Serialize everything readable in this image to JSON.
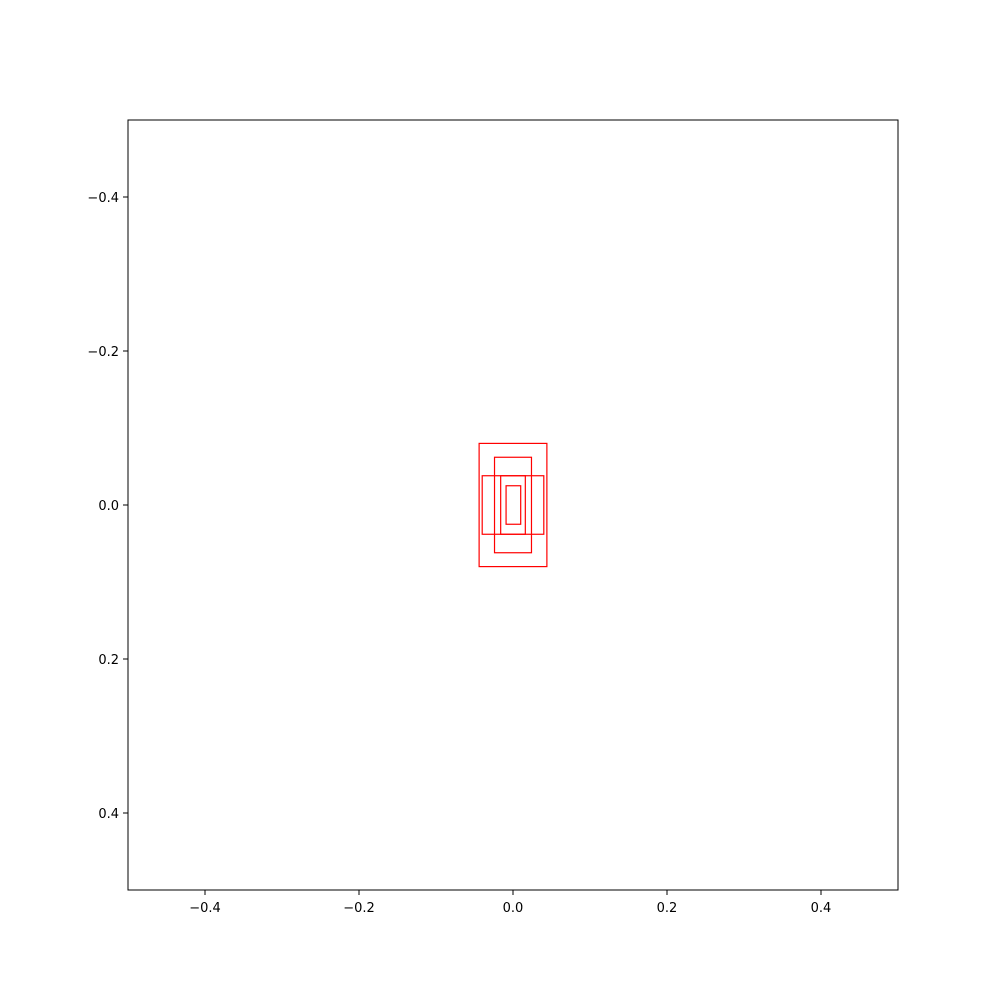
{
  "chart_data": {
    "type": "scatter",
    "title": "",
    "xlabel": "",
    "ylabel": "",
    "xlim": [
      -0.5,
      0.5
    ],
    "ylim": [
      0.5,
      -0.5
    ],
    "y_inverted": true,
    "grid": false,
    "legend": "none",
    "x_ticks": [
      -0.4,
      -0.2,
      0.0,
      0.2,
      0.4
    ],
    "x_tick_labels": [
      "−0.4",
      "−0.2",
      "0.0",
      "0.2",
      "0.4"
    ],
    "y_ticks": [
      -0.4,
      -0.2,
      0.0,
      0.2,
      0.4
    ],
    "y_tick_labels": [
      "−0.4",
      "−0.2",
      "0.0",
      "0.2",
      "0.4"
    ],
    "rectangles": [
      {
        "x": -0.044,
        "y": -0.08,
        "width": 0.088,
        "height": 0.16,
        "color": "#ff0000"
      },
      {
        "x": -0.024,
        "y": -0.062,
        "width": 0.048,
        "height": 0.124,
        "color": "#ff0000"
      },
      {
        "x": -0.04,
        "y": -0.038,
        "width": 0.08,
        "height": 0.076,
        "color": "#ff0000"
      },
      {
        "x": -0.016,
        "y": -0.038,
        "width": 0.032,
        "height": 0.076,
        "color": "#ff0000"
      },
      {
        "x": -0.009,
        "y": -0.025,
        "width": 0.019,
        "height": 0.05,
        "color": "#ff0000"
      }
    ]
  }
}
